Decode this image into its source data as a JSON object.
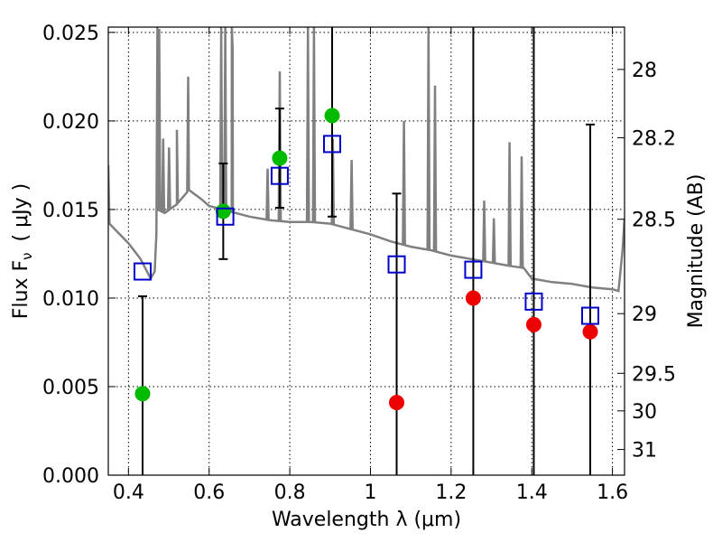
{
  "chart_data": {
    "type": "scatter",
    "xlabel": "Wavelength  λ (μm)",
    "ylabel": "Flux  F",
    "ylabel_subscript": "ν",
    "ylabel_unit": "( μJy )",
    "y2label": "Magnitude (AB)",
    "xlim": [
      0.35,
      1.63
    ],
    "ylim": [
      0.0,
      0.0253
    ],
    "grid": true,
    "x_ticks": [
      0.4,
      0.6,
      0.8,
      1.0,
      1.2,
      1.4,
      1.6
    ],
    "x_tick_labels": [
      "0.4",
      "0.6",
      "0.8",
      "1",
      "1.2",
      "1.4",
      "1.6"
    ],
    "y_ticks": [
      0.0,
      0.005,
      0.01,
      0.015,
      0.02,
      0.025
    ],
    "y_tick_labels": [
      "0.000",
      "0.005",
      "0.010",
      "0.015",
      "0.020",
      "0.025"
    ],
    "y2_ticks": [
      {
        "label": "28",
        "flux": 0.02291
      },
      {
        "label": "28.2",
        "flux": 0.01905
      },
      {
        "label": "28.5",
        "flux": 0.01445
      },
      {
        "label": "29",
        "flux": 0.00912
      },
      {
        "label": "29.5",
        "flux": 0.00575
      },
      {
        "label": "30",
        "flux": 0.00363
      },
      {
        "label": "31",
        "flux": 0.00145
      }
    ],
    "model_spectrum": {
      "color": "#808080",
      "continuum": [
        [
          0.35,
          0.0175
        ],
        [
          0.353,
          0.0142
        ],
        [
          0.37,
          0.0138
        ],
        [
          0.4,
          0.0131
        ],
        [
          0.43,
          0.0122
        ],
        [
          0.455,
          0.0111
        ],
        [
          0.465,
          0.0115
        ],
        [
          0.472,
          0.015
        ],
        [
          0.49,
          0.0148
        ],
        [
          0.52,
          0.0153
        ],
        [
          0.55,
          0.0161
        ],
        [
          0.58,
          0.0156
        ],
        [
          0.6,
          0.0152
        ],
        [
          0.65,
          0.0149
        ],
        [
          0.7,
          0.0146
        ],
        [
          0.75,
          0.0144
        ],
        [
          0.8,
          0.0143
        ],
        [
          0.85,
          0.0143
        ],
        [
          0.9,
          0.0142
        ],
        [
          0.95,
          0.0139
        ],
        [
          1.0,
          0.0136
        ],
        [
          1.05,
          0.0132
        ],
        [
          1.1,
          0.0129
        ],
        [
          1.15,
          0.0127
        ],
        [
          1.2,
          0.0124
        ],
        [
          1.25,
          0.0122
        ],
        [
          1.3,
          0.012
        ],
        [
          1.35,
          0.0118
        ],
        [
          1.38,
          0.0117
        ],
        [
          1.4,
          0.0111
        ],
        [
          1.45,
          0.0109
        ],
        [
          1.5,
          0.0108
        ],
        [
          1.55,
          0.0106
        ],
        [
          1.6,
          0.0105
        ],
        [
          1.615,
          0.0104
        ],
        [
          1.625,
          0.0127
        ],
        [
          1.63,
          0.0145
        ]
      ],
      "emission_lines": [
        {
          "x": 0.4718,
          "peak": 0.0253
        },
        {
          "x": 0.4761,
          "peak": 0.0252
        },
        {
          "x": 0.4861,
          "peak": 0.019
        },
        {
          "x": 0.5007,
          "peak": 0.0185
        },
        {
          "x": 0.52,
          "peak": 0.0195
        },
        {
          "x": 0.548,
          "peak": 0.0225
        },
        {
          "x": 0.63,
          "peak": 0.0253
        },
        {
          "x": 0.64,
          "peak": 0.0253
        },
        {
          "x": 0.6563,
          "peak": 0.0253
        },
        {
          "x": 0.6583,
          "peak": 0.024
        },
        {
          "x": 0.745,
          "peak": 0.0173
        },
        {
          "x": 0.7751,
          "peak": 0.0228
        },
        {
          "x": 0.845,
          "peak": 0.0253
        },
        {
          "x": 0.86,
          "peak": 0.0253
        },
        {
          "x": 0.9068,
          "peak": 0.019
        },
        {
          "x": 0.9532,
          "peak": 0.0178
        },
        {
          "x": 1.083,
          "peak": 0.02
        },
        {
          "x": 1.144,
          "peak": 0.0253
        },
        {
          "x": 1.16,
          "peak": 0.022
        },
        {
          "x": 1.282,
          "peak": 0.0155
        },
        {
          "x": 1.306,
          "peak": 0.0145
        },
        {
          "x": 1.345,
          "peak": 0.0188
        },
        {
          "x": 1.375,
          "peak": 0.018
        }
      ]
    },
    "series": [
      {
        "marker": "circle",
        "color": "#00bb00",
        "x": [
          0.435,
          0.635,
          0.775,
          0.905
        ],
        "y": [
          0.0046,
          0.0149,
          0.0179,
          0.0203
        ],
        "err_low": [
          0.0253,
          0.0027,
          0.0028,
          0.0057
        ],
        "err_high": [
          0.0055,
          0.0027,
          0.0028,
          0.0057
        ]
      },
      {
        "marker": "circle",
        "color": "#ee0000",
        "x": [
          1.065,
          1.255,
          1.405,
          1.545
        ],
        "y": [
          0.0041,
          0.01,
          0.0085,
          0.0081
        ],
        "err_low": [
          0.0253,
          0.0253,
          0.0253,
          0.0253
        ],
        "err_high": [
          0.0118,
          0.0253,
          0.0253,
          0.0117
        ]
      },
      {
        "marker": "open-square",
        "color": "#0000cc",
        "x": [
          0.435,
          0.64,
          0.775,
          0.905,
          1.065,
          1.255,
          1.405,
          1.545
        ],
        "y": [
          0.0115,
          0.0146,
          0.0169,
          0.0187,
          0.0119,
          0.0116,
          0.0098,
          0.009
        ]
      }
    ]
  }
}
